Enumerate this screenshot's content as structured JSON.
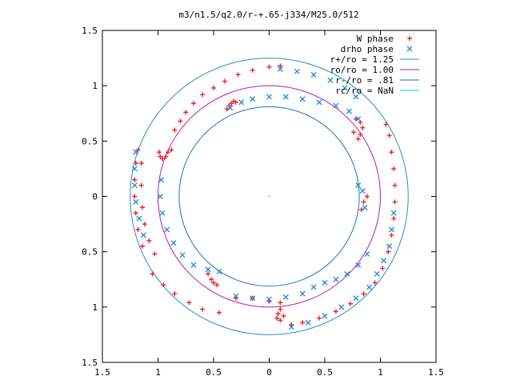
{
  "chart_data": {
    "type": "scatter",
    "title": "m3/n1.5/q2.0/r-+.65-j334/M25.0/512",
    "xlabel": "",
    "ylabel": "",
    "xlim": [
      -1.5,
      1.5
    ],
    "ylim": [
      -1.5,
      1.5
    ],
    "x_ticks": [
      -1.5,
      -1,
      -0.5,
      0,
      0.5,
      1,
      1.5
    ],
    "y_ticks": [
      -1.5,
      -1,
      -0.5,
      0,
      0.5,
      1,
      1.5
    ],
    "x_tick_labels": [
      "1.5",
      "1",
      "0.5",
      "0",
      "0.5",
      "1",
      "1.5"
    ],
    "y_tick_labels": [
      "1.5",
      "1",
      "0.5",
      "0",
      "0.5",
      "1",
      "1.5"
    ],
    "grid": false,
    "legend_position": "top-right",
    "legend_entries": [
      {
        "label": "W phase",
        "marker": "plus",
        "color": "#e8262a"
      },
      {
        "label": "drho phase",
        "marker": "cross",
        "color": "#2a8be0"
      },
      {
        "label": "r+/ro = 1.25",
        "marker": "line",
        "color": "#2a8fc8"
      },
      {
        "label": "ro/ro = 1.00",
        "marker": "line",
        "color": "#b21fb2"
      },
      {
        "label": "r-/ro = .81",
        "marker": "line",
        "color": "#2070c0"
      },
      {
        "label": "rc/ro = NaN",
        "marker": "line",
        "color": "#25c9c9"
      }
    ],
    "circles": [
      {
        "name": "r+/ro = 1.25",
        "radius": 1.25,
        "color": "#2a8fc8"
      },
      {
        "name": "ro/ro = 1.00",
        "radius": 1.0,
        "color": "#b21fb2"
      },
      {
        "name": "r-/ro = .81",
        "radius": 0.81,
        "color": "#2070c0"
      }
    ],
    "series": [
      {
        "name": "W phase",
        "color": "#e8262a",
        "points": [
          [
            -0.38,
            0.79
          ],
          [
            -0.36,
            0.82
          ],
          [
            -0.34,
            0.84
          ],
          [
            -0.32,
            0.86
          ],
          [
            -0.3,
            0.85
          ],
          [
            0.8,
            0.52
          ],
          [
            0.82,
            0.56
          ],
          [
            0.84,
            0.62
          ],
          [
            0.82,
            0.67
          ],
          [
            0.78,
            0.7
          ],
          [
            0.76,
            0.58
          ],
          [
            -1.15,
            0.3
          ],
          [
            -1.15,
            0.1
          ],
          [
            -1.14,
            -0.1
          ],
          [
            -1.12,
            -0.25
          ],
          [
            -1.08,
            -0.4
          ],
          [
            -1.03,
            -0.52
          ],
          [
            -0.99,
            0.4
          ],
          [
            -0.98,
            0.36
          ],
          [
            -0.96,
            0.34
          ],
          [
            -0.93,
            0.36
          ],
          [
            -0.91,
            0.4
          ],
          [
            -0.88,
            0.42
          ],
          [
            -0.55,
            -0.7
          ],
          [
            -0.52,
            -0.75
          ],
          [
            -0.5,
            -0.78
          ],
          [
            -0.47,
            -0.8
          ],
          [
            0.1,
            -1.02
          ],
          [
            0.08,
            -1.06
          ],
          [
            0.07,
            -1.1
          ],
          [
            0.1,
            -1.12
          ],
          [
            0.13,
            -1.08
          ],
          [
            0.88,
            0.0
          ],
          [
            0.85,
            -0.05
          ],
          [
            0.83,
            -0.12
          ]
        ]
      },
      {
        "name": "W phase (second branch)",
        "color": "#e8262a",
        "points": [
          [
            -1.18,
            0.42
          ],
          [
            -1.2,
            0.3
          ],
          [
            -1.21,
            0.15
          ],
          [
            -1.21,
            0.0
          ],
          [
            -1.2,
            -0.15
          ],
          [
            -1.18,
            -0.3
          ],
          [
            -1.14,
            -0.45
          ],
          [
            -1.05,
            -0.7
          ],
          [
            -0.95,
            -0.8
          ],
          [
            -0.85,
            -0.88
          ],
          [
            -0.72,
            -0.96
          ],
          [
            -0.6,
            -1.02
          ],
          [
            -0.45,
            -1.05
          ],
          [
            -0.3,
            -0.92
          ],
          [
            -0.15,
            -0.92
          ],
          [
            0.0,
            -0.95
          ],
          [
            0.1,
            -0.96
          ],
          [
            -0.85,
            0.6
          ],
          [
            -0.8,
            0.68
          ],
          [
            -0.75,
            0.76
          ],
          [
            -0.68,
            0.84
          ],
          [
            -0.6,
            0.92
          ],
          [
            -0.5,
            0.98
          ],
          [
            -0.4,
            1.04
          ],
          [
            -0.28,
            1.1
          ],
          [
            -0.15,
            1.14
          ],
          [
            0.0,
            1.17
          ],
          [
            0.1,
            1.18
          ],
          [
            1.05,
            0.65
          ],
          [
            1.08,
            0.55
          ],
          [
            1.1,
            0.4
          ],
          [
            1.12,
            0.25
          ],
          [
            1.13,
            0.1
          ],
          [
            1.13,
            -0.05
          ],
          [
            1.12,
            -0.2
          ],
          [
            1.1,
            -0.35
          ],
          [
            1.07,
            -0.5
          ],
          [
            1.02,
            -0.65
          ],
          [
            0.95,
            -0.78
          ],
          [
            0.85,
            -0.88
          ],
          [
            0.73,
            -0.97
          ],
          [
            0.6,
            -1.04
          ],
          [
            0.45,
            -1.1
          ],
          [
            0.3,
            -1.14
          ],
          [
            0.2,
            -1.16
          ]
        ]
      },
      {
        "name": "drho phase",
        "color": "#2a8be0",
        "points": [
          [
            -0.35,
            0.8
          ],
          [
            -0.25,
            0.85
          ],
          [
            -0.15,
            0.88
          ],
          [
            0.0,
            0.9
          ],
          [
            0.15,
            0.9
          ],
          [
            0.3,
            0.88
          ],
          [
            0.45,
            0.85
          ],
          [
            0.6,
            0.82
          ],
          [
            0.72,
            0.77
          ],
          [
            0.8,
            0.7
          ],
          [
            0.1,
            1.15
          ],
          [
            0.25,
            1.13
          ],
          [
            0.4,
            1.1
          ],
          [
            0.55,
            1.05
          ],
          [
            0.68,
            0.98
          ],
          [
            0.78,
            0.9
          ],
          [
            -0.97,
            0.15
          ],
          [
            -0.98,
            0.0
          ],
          [
            -0.96,
            -0.15
          ],
          [
            -0.92,
            -0.3
          ],
          [
            -0.86,
            -0.42
          ],
          [
            -0.78,
            -0.53
          ],
          [
            -0.68,
            -0.62
          ],
          [
            -0.55,
            -0.66
          ],
          [
            -0.45,
            -0.68
          ],
          [
            -1.2,
            0.4
          ],
          [
            -1.21,
            0.25
          ],
          [
            -1.21,
            0.1
          ],
          [
            -1.2,
            -0.05
          ],
          [
            -1.17,
            -0.2
          ],
          [
            -1.13,
            -0.35
          ],
          [
            -0.3,
            -0.9
          ],
          [
            -0.15,
            -0.92
          ],
          [
            0.0,
            -0.93
          ],
          [
            0.15,
            -0.91
          ],
          [
            0.3,
            -0.88
          ],
          [
            0.4,
            -0.82
          ],
          [
            0.5,
            -0.78
          ],
          [
            0.6,
            -0.75
          ],
          [
            0.7,
            -0.7
          ],
          [
            0.8,
            -0.62
          ],
          [
            0.88,
            -0.52
          ],
          [
            0.86,
            -0.1
          ],
          [
            0.84,
            0.05
          ],
          [
            0.8,
            0.1
          ],
          [
            0.2,
            -1.18
          ],
          [
            0.35,
            -1.14
          ],
          [
            0.5,
            -1.08
          ],
          [
            0.65,
            -1.0
          ],
          [
            0.78,
            -0.92
          ],
          [
            0.9,
            -0.82
          ],
          [
            0.97,
            -0.7
          ],
          [
            1.03,
            -0.58
          ],
          [
            1.08,
            -0.45
          ],
          [
            1.1,
            -0.3
          ],
          [
            1.12,
            -0.15
          ]
        ]
      }
    ]
  }
}
